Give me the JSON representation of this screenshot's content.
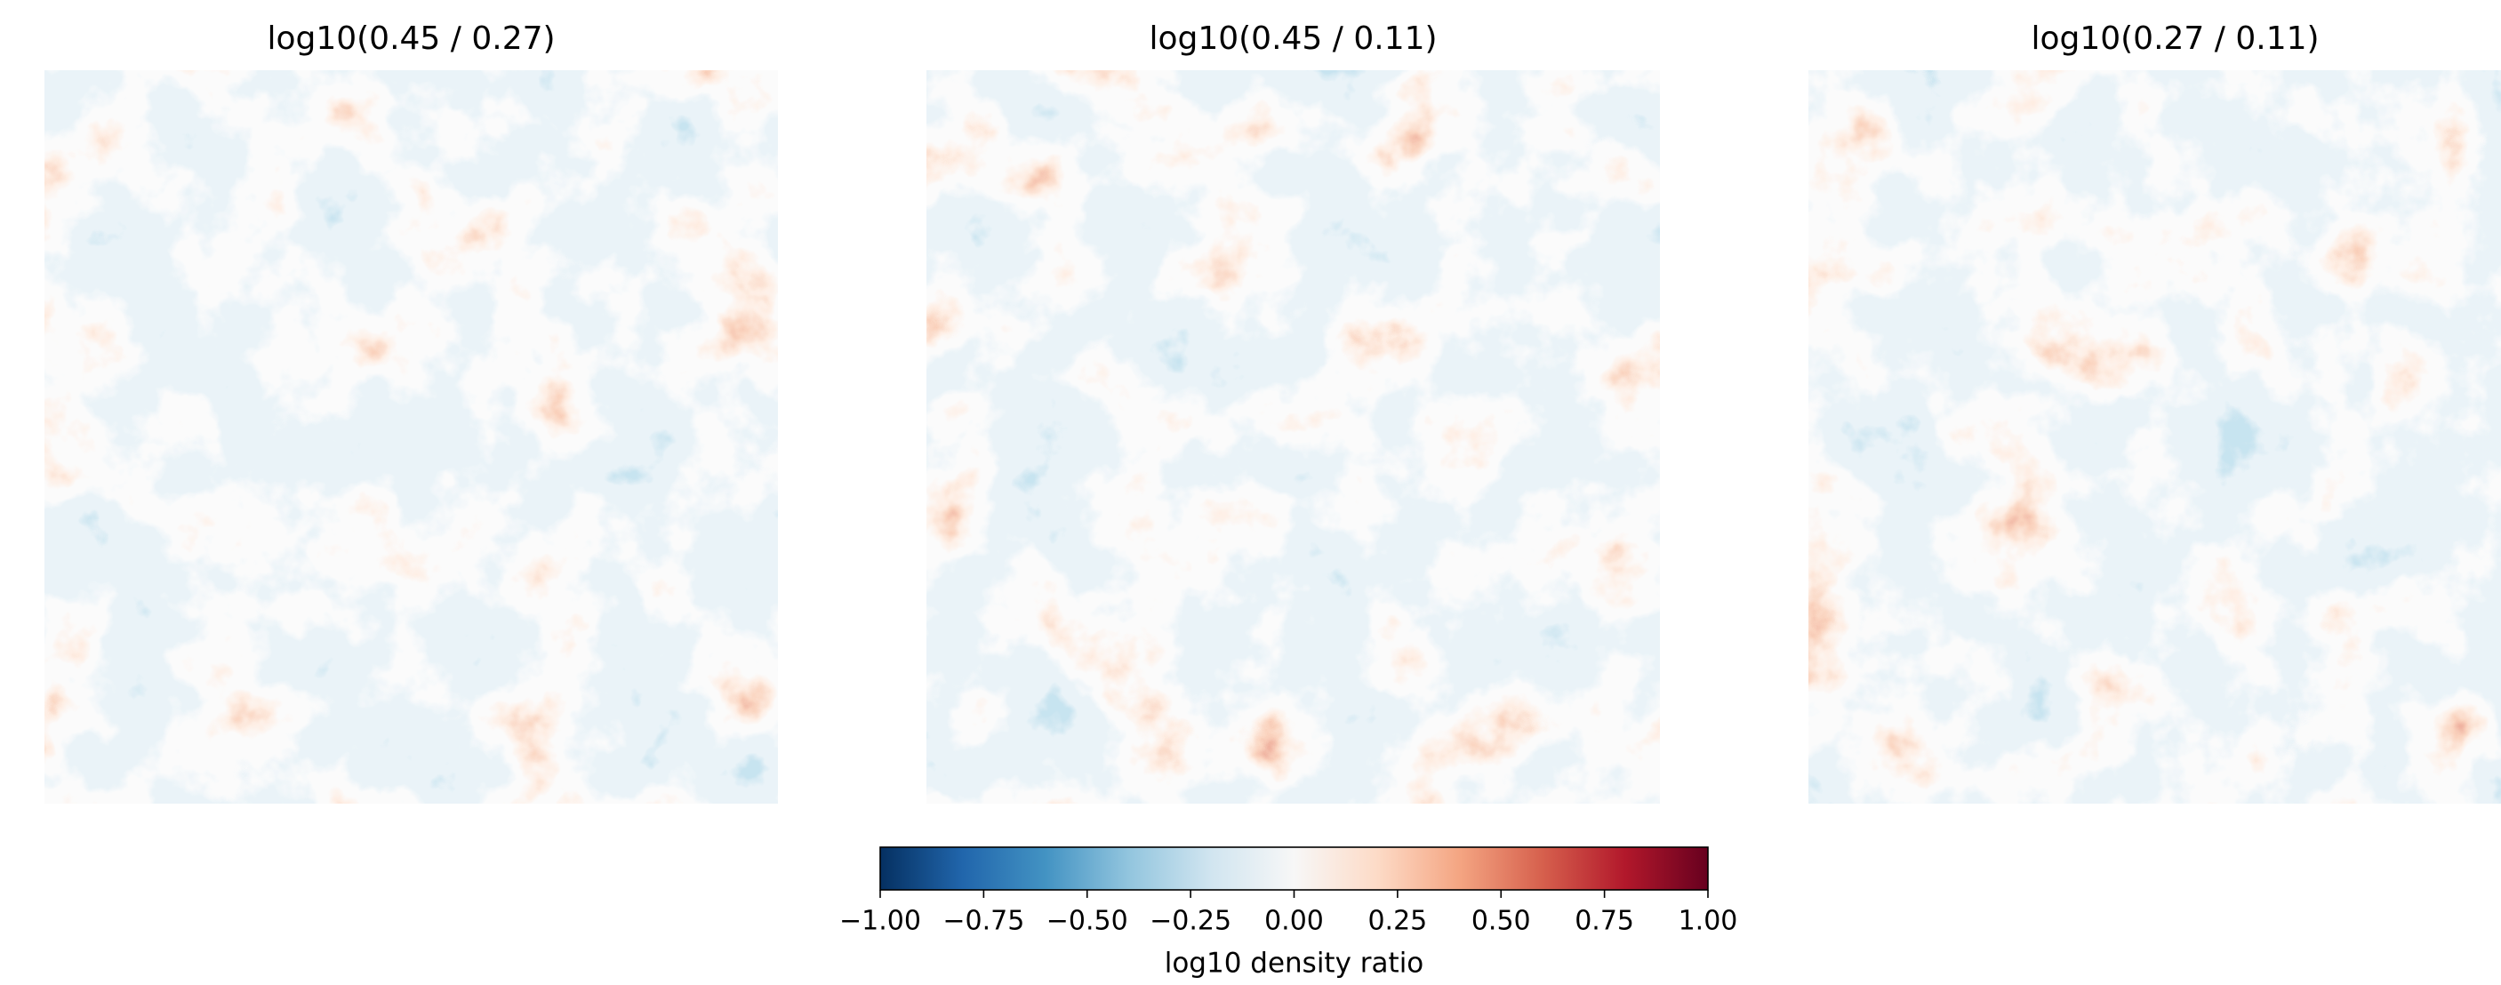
{
  "chart_data": {
    "type": "heatmap",
    "panels": [
      {
        "title": "log10(0.45 / 0.27)"
      },
      {
        "title": "log10(0.45 / 0.11)"
      },
      {
        "title": "log10(0.27 / 0.11)"
      }
    ],
    "cmap": "RdBu_r",
    "clim": [
      -1,
      1
    ],
    "colorbar_label": "log10 density ratio",
    "colorbar_ticks": [
      {
        "value": -1,
        "label": "−1.00"
      },
      {
        "value": -0.75,
        "label": "−0.75"
      },
      {
        "value": -0.5,
        "label": "−0.50"
      },
      {
        "value": -0.25,
        "label": "−0.25"
      },
      {
        "value": 0,
        "label": "0.00"
      },
      {
        "value": 0.25,
        "label": "0.25"
      },
      {
        "value": 0.5,
        "label": "0.50"
      },
      {
        "value": 0.75,
        "label": "0.75"
      },
      {
        "value": 1,
        "label": "1.00"
      }
    ]
  }
}
